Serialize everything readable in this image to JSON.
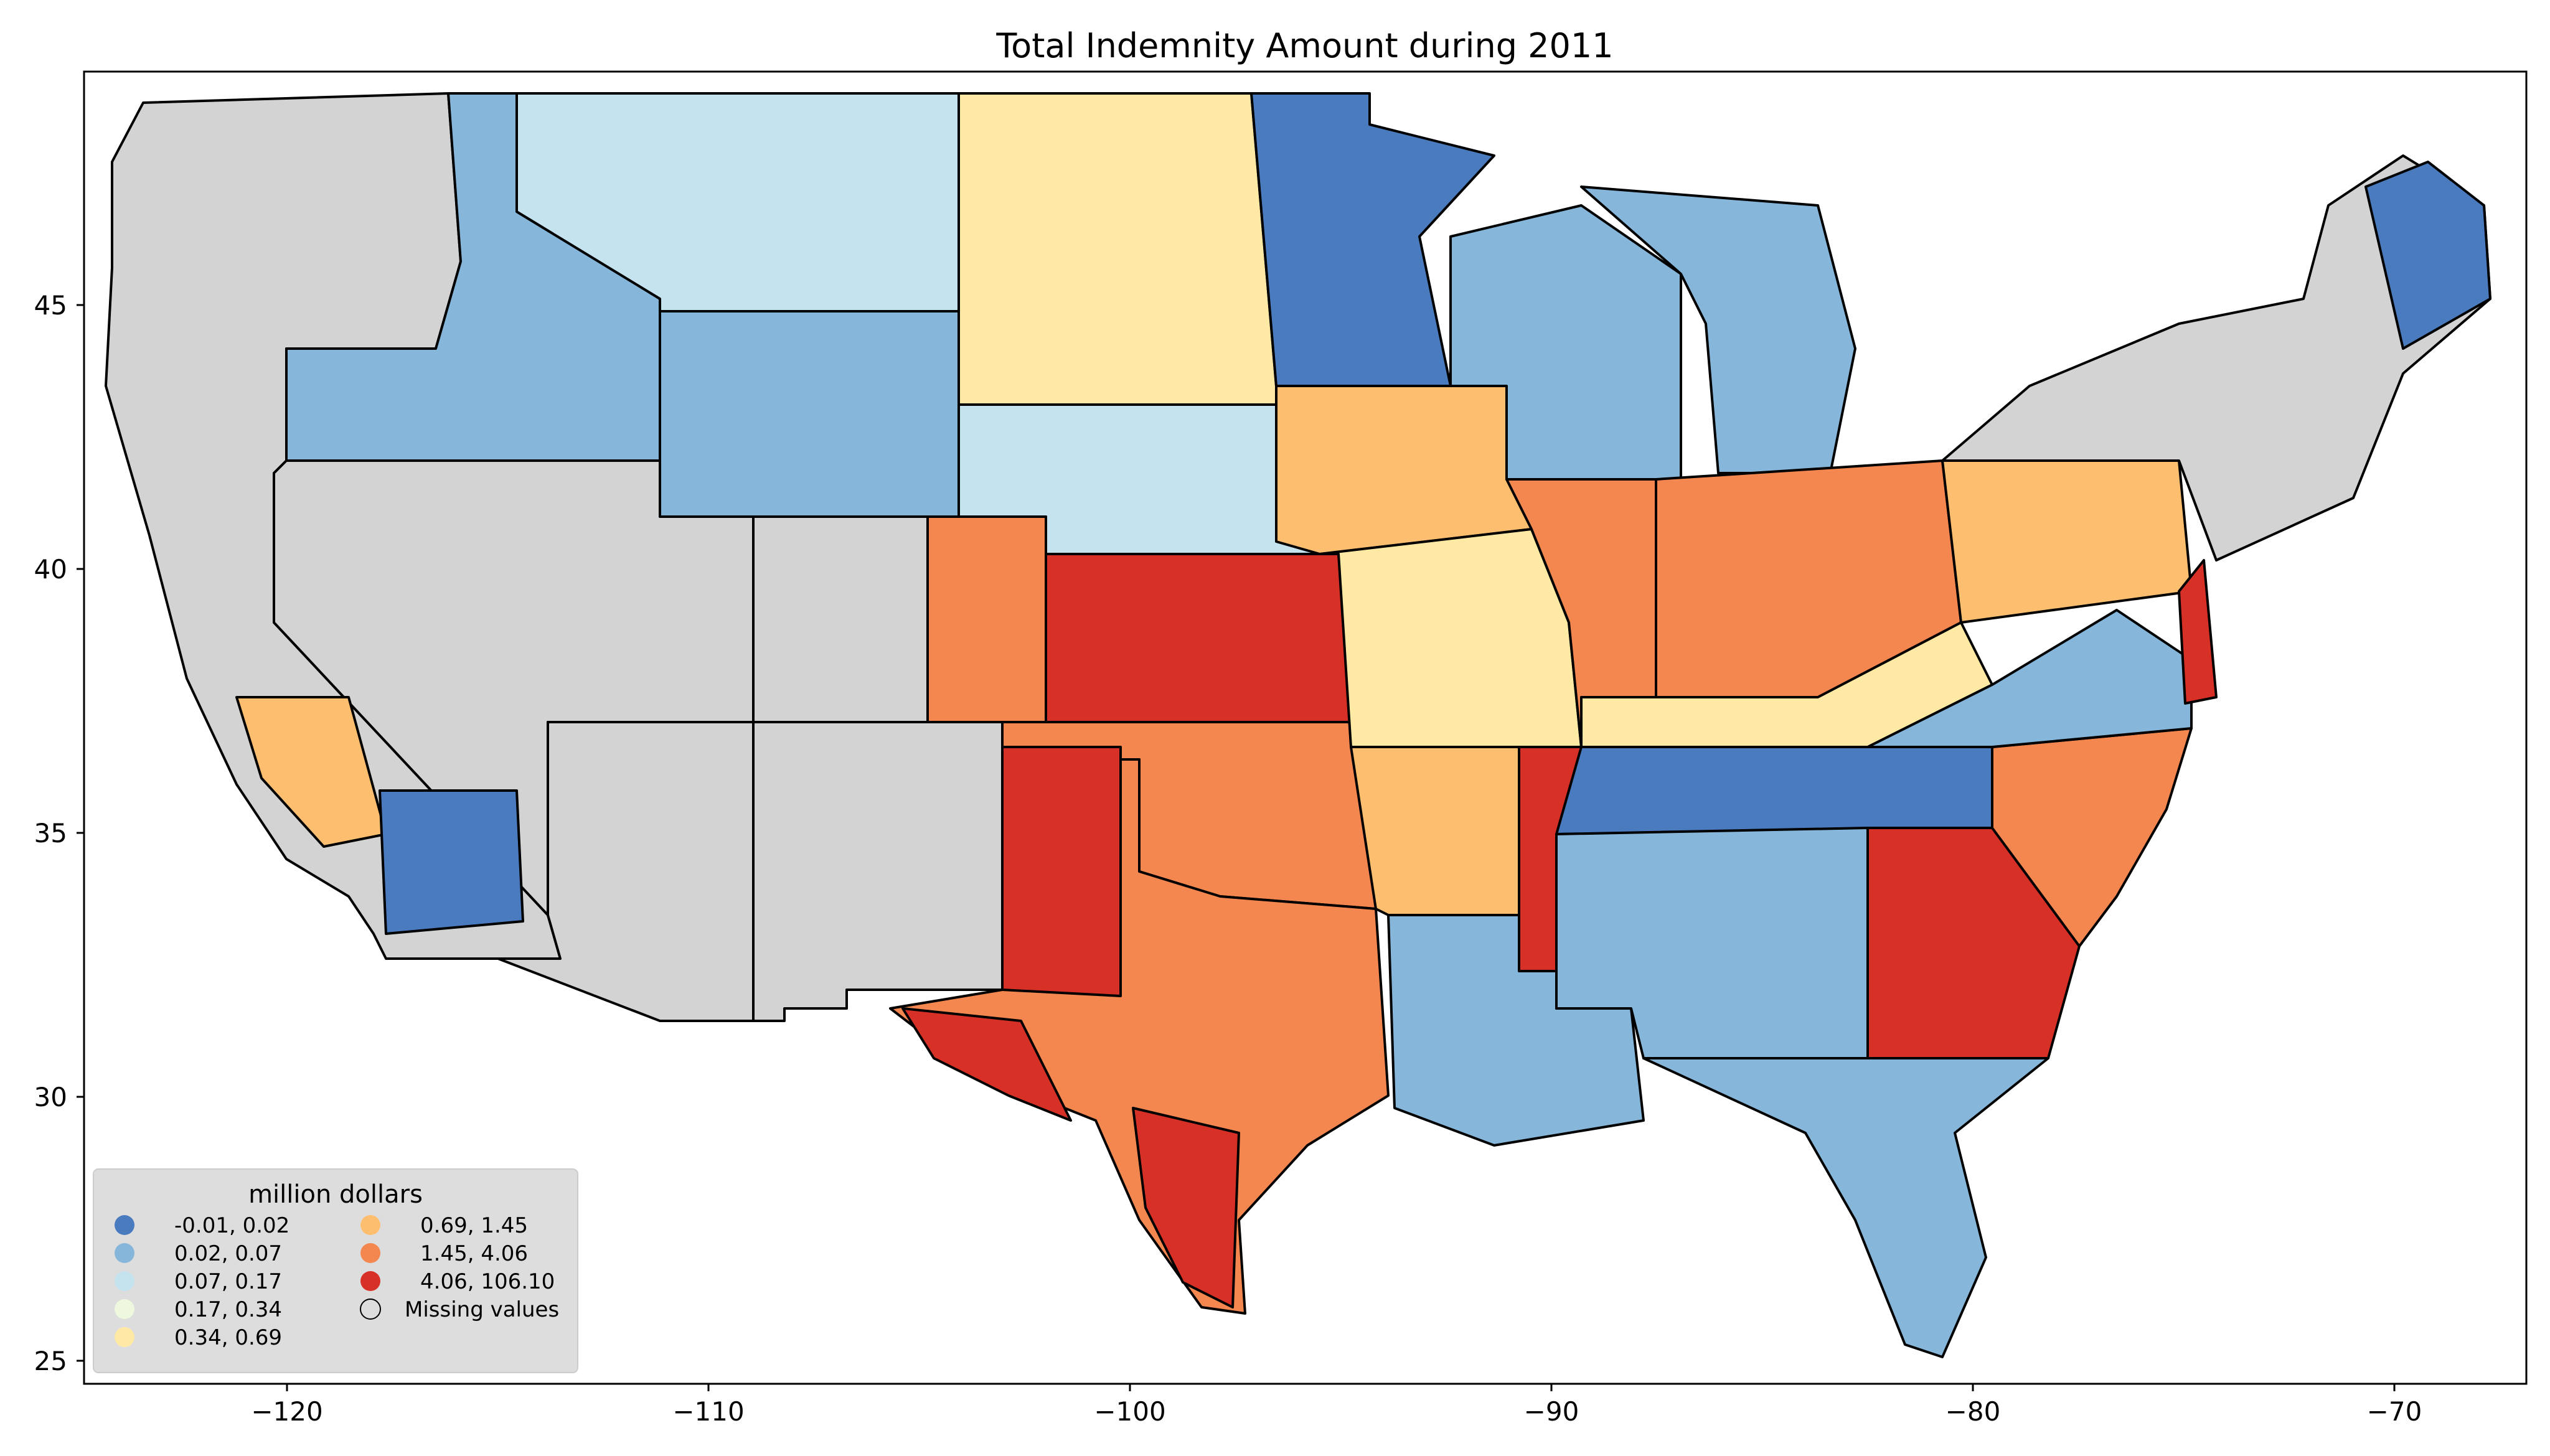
{
  "title": "Total Indemnity Amount during 2011",
  "map": {
    "type": "choropleth",
    "region": "United States counties (contiguous)",
    "x_ticks": [
      "−120",
      "−110",
      "−100",
      "−90",
      "−80",
      "−70"
    ],
    "y_ticks": [
      "45",
      "40",
      "35",
      "30",
      "25"
    ],
    "colors": {
      "missing": "#d3d3d3",
      "c1": "#4a7bbf",
      "c2": "#86b7db",
      "c3": "#c5e2ef",
      "c4": "#eef8df",
      "c5": "#ffe9a5",
      "c6": "#fdbf6f",
      "c7": "#f4874f",
      "c8": "#d73027"
    }
  },
  "legend": {
    "title": "million dollars",
    "entries": [
      {
        "label": "-0.01,   0.02",
        "color": "#4a7bbf"
      },
      {
        "label": "0.02,   0.07",
        "color": "#86b7db"
      },
      {
        "label": "0.07,   0.17",
        "color": "#c5e2ef"
      },
      {
        "label": "0.17,   0.34",
        "color": "#eef8df"
      },
      {
        "label": "0.34,   0.69",
        "color": "#ffe9a5"
      },
      {
        "label": "0.69,   1.45",
        "color": "#fdbf6f"
      },
      {
        "label": "1.45,   4.06",
        "color": "#f4874f"
      },
      {
        "label": "4.06, 106.10",
        "color": "#d73027"
      },
      {
        "label": "Missing values",
        "color": "none"
      }
    ]
  }
}
